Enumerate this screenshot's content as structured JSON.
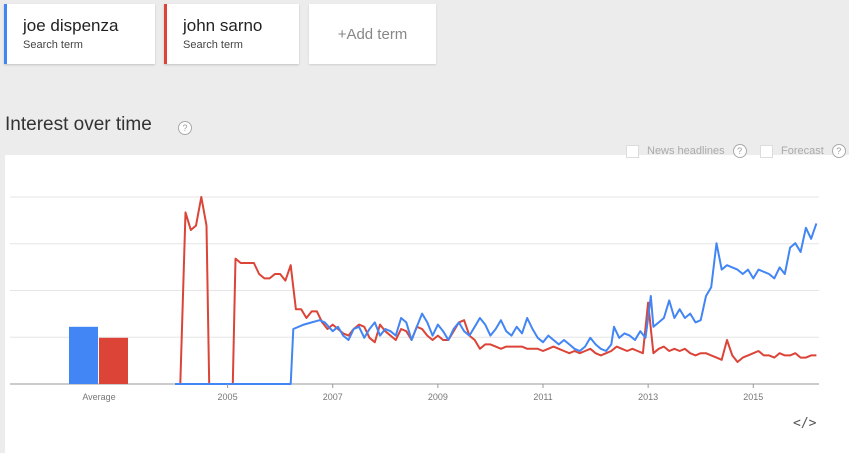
{
  "terms": [
    {
      "name": "joe dispenza",
      "subtitle": "Search term",
      "color": "#4285f4"
    },
    {
      "name": "john sarno",
      "subtitle": "Search term",
      "color": "#db4437"
    }
  ],
  "add_term": {
    "label": "+Add term"
  },
  "section": {
    "title": "Interest over time",
    "help": "?"
  },
  "options": {
    "news_headlines": {
      "label": "News headlines",
      "help": "?"
    },
    "forecast": {
      "label": "Forecast",
      "help": "?"
    }
  },
  "embed": {
    "label": "</>",
    "icon": "embed-code-icon"
  },
  "chart_data": [
    {
      "type": "bar",
      "categories": [
        "Average"
      ],
      "series": [
        {
          "name": "joe dispenza",
          "color": "#4285f4",
          "values": [
            26
          ]
        },
        {
          "name": "john sarno",
          "color": "#db4437",
          "values": [
            21
          ]
        }
      ],
      "ylim": [
        0,
        85
      ]
    },
    {
      "type": "line",
      "x_ticks": [
        "2005",
        "2007",
        "2009",
        "2011",
        "2013",
        "2015"
      ],
      "xlim": [
        2004.0,
        2016.25
      ],
      "ylim": [
        0,
        85
      ],
      "grid": true,
      "series": [
        {
          "name": "joe dispenza",
          "color": "#4285f4",
          "points": [
            [
              2004.0,
              0
            ],
            [
              2006.2,
              0
            ],
            [
              2006.25,
              25
            ],
            [
              2006.45,
              27
            ],
            [
              2006.6,
              28
            ],
            [
              2006.75,
              29
            ],
            [
              2006.85,
              28
            ],
            [
              2007.0,
              24
            ],
            [
              2007.1,
              26
            ],
            [
              2007.2,
              22
            ],
            [
              2007.3,
              20
            ],
            [
              2007.4,
              25
            ],
            [
              2007.5,
              26
            ],
            [
              2007.6,
              21
            ],
            [
              2007.7,
              25
            ],
            [
              2007.8,
              28
            ],
            [
              2007.9,
              22
            ],
            [
              2008.0,
              25
            ],
            [
              2008.1,
              24
            ],
            [
              2008.2,
              22
            ],
            [
              2008.3,
              30
            ],
            [
              2008.4,
              28
            ],
            [
              2008.5,
              20
            ],
            [
              2008.6,
              26
            ],
            [
              2008.7,
              32
            ],
            [
              2008.8,
              28
            ],
            [
              2008.9,
              22
            ],
            [
              2009.0,
              27
            ],
            [
              2009.1,
              24
            ],
            [
              2009.2,
              20
            ],
            [
              2009.3,
              25
            ],
            [
              2009.4,
              28
            ],
            [
              2009.5,
              24
            ],
            [
              2009.6,
              22
            ],
            [
              2009.7,
              26
            ],
            [
              2009.8,
              30
            ],
            [
              2009.9,
              27
            ],
            [
              2010.0,
              22
            ],
            [
              2010.1,
              25
            ],
            [
              2010.2,
              29
            ],
            [
              2010.3,
              24
            ],
            [
              2010.4,
              22
            ],
            [
              2010.5,
              26
            ],
            [
              2010.6,
              23
            ],
            [
              2010.7,
              30
            ],
            [
              2010.8,
              25
            ],
            [
              2010.9,
              21
            ],
            [
              2011.0,
              19
            ],
            [
              2011.1,
              22
            ],
            [
              2011.2,
              20
            ],
            [
              2011.3,
              18
            ],
            [
              2011.4,
              20
            ],
            [
              2011.5,
              18
            ],
            [
              2011.6,
              16
            ],
            [
              2011.7,
              15
            ],
            [
              2011.8,
              17
            ],
            [
              2011.9,
              21
            ],
            [
              2012.0,
              18
            ],
            [
              2012.1,
              16
            ],
            [
              2012.2,
              15
            ],
            [
              2012.3,
              18
            ],
            [
              2012.35,
              26
            ],
            [
              2012.45,
              21
            ],
            [
              2012.55,
              23
            ],
            [
              2012.65,
              22
            ],
            [
              2012.75,
              20
            ],
            [
              2012.85,
              24
            ],
            [
              2012.95,
              21
            ],
            [
              2013.0,
              30
            ],
            [
              2013.05,
              40
            ],
            [
              2013.1,
              26
            ],
            [
              2013.2,
              28
            ],
            [
              2013.3,
              30
            ],
            [
              2013.4,
              38
            ],
            [
              2013.5,
              30
            ],
            [
              2013.6,
              34
            ],
            [
              2013.7,
              30
            ],
            [
              2013.8,
              32
            ],
            [
              2013.9,
              28
            ],
            [
              2014.0,
              29
            ],
            [
              2014.1,
              40
            ],
            [
              2014.2,
              44
            ],
            [
              2014.3,
              64
            ],
            [
              2014.4,
              52
            ],
            [
              2014.5,
              54
            ],
            [
              2014.6,
              53
            ],
            [
              2014.7,
              52
            ],
            [
              2014.8,
              50
            ],
            [
              2014.9,
              52
            ],
            [
              2015.0,
              48
            ],
            [
              2015.1,
              52
            ],
            [
              2015.2,
              51
            ],
            [
              2015.3,
              50
            ],
            [
              2015.4,
              48
            ],
            [
              2015.5,
              53
            ],
            [
              2015.6,
              50
            ],
            [
              2015.7,
              62
            ],
            [
              2015.8,
              64
            ],
            [
              2015.9,
              60
            ],
            [
              2016.0,
              71
            ],
            [
              2016.1,
              66
            ],
            [
              2016.2,
              73
            ]
          ]
        },
        {
          "name": "john sarno",
          "color": "#db4437",
          "points": [
            [
              2004.0,
              0
            ],
            [
              2004.1,
              0
            ],
            [
              2004.2,
              78
            ],
            [
              2004.3,
              70
            ],
            [
              2004.4,
              72
            ],
            [
              2004.5,
              85
            ],
            [
              2004.6,
              72
            ],
            [
              2004.65,
              0
            ],
            [
              2005.1,
              0
            ],
            [
              2005.15,
              57
            ],
            [
              2005.25,
              55
            ],
            [
              2005.35,
              55
            ],
            [
              2005.5,
              55
            ],
            [
              2005.6,
              50
            ],
            [
              2005.7,
              48
            ],
            [
              2005.8,
              48
            ],
            [
              2005.9,
              50
            ],
            [
              2006.0,
              50
            ],
            [
              2006.1,
              47
            ],
            [
              2006.2,
              54
            ],
            [
              2006.3,
              34
            ],
            [
              2006.4,
              34
            ],
            [
              2006.5,
              30
            ],
            [
              2006.6,
              33
            ],
            [
              2006.7,
              33
            ],
            [
              2006.8,
              28
            ],
            [
              2006.9,
              25
            ],
            [
              2007.0,
              27
            ],
            [
              2007.1,
              25
            ],
            [
              2007.2,
              23
            ],
            [
              2007.3,
              22
            ],
            [
              2007.4,
              25
            ],
            [
              2007.5,
              27
            ],
            [
              2007.6,
              26
            ],
            [
              2007.7,
              21
            ],
            [
              2007.8,
              19
            ],
            [
              2007.9,
              27
            ],
            [
              2008.0,
              24
            ],
            [
              2008.1,
              22
            ],
            [
              2008.2,
              20
            ],
            [
              2008.3,
              25
            ],
            [
              2008.4,
              24
            ],
            [
              2008.5,
              20
            ],
            [
              2008.6,
              26
            ],
            [
              2008.7,
              25
            ],
            [
              2008.8,
              22
            ],
            [
              2008.9,
              20
            ],
            [
              2009.0,
              22
            ],
            [
              2009.1,
              20
            ],
            [
              2009.2,
              20
            ],
            [
              2009.3,
              24
            ],
            [
              2009.4,
              28
            ],
            [
              2009.5,
              29
            ],
            [
              2009.6,
              22
            ],
            [
              2009.7,
              20
            ],
            [
              2009.8,
              16
            ],
            [
              2009.9,
              18
            ],
            [
              2010.0,
              18
            ],
            [
              2010.1,
              17
            ],
            [
              2010.2,
              16
            ],
            [
              2010.3,
              17
            ],
            [
              2010.4,
              17
            ],
            [
              2010.5,
              17
            ],
            [
              2010.6,
              17
            ],
            [
              2010.7,
              16
            ],
            [
              2010.8,
              16
            ],
            [
              2010.9,
              16
            ],
            [
              2011.0,
              15
            ],
            [
              2011.1,
              16
            ],
            [
              2011.2,
              17
            ],
            [
              2011.3,
              16
            ],
            [
              2011.4,
              15
            ],
            [
              2011.5,
              14
            ],
            [
              2011.6,
              15
            ],
            [
              2011.7,
              14
            ],
            [
              2011.8,
              15
            ],
            [
              2011.9,
              16
            ],
            [
              2012.0,
              14
            ],
            [
              2012.1,
              13
            ],
            [
              2012.2,
              14
            ],
            [
              2012.3,
              15
            ],
            [
              2012.4,
              17
            ],
            [
              2012.5,
              16
            ],
            [
              2012.6,
              15
            ],
            [
              2012.7,
              16
            ],
            [
              2012.8,
              15
            ],
            [
              2012.9,
              14
            ],
            [
              2013.0,
              37
            ],
            [
              2013.1,
              14
            ],
            [
              2013.2,
              16
            ],
            [
              2013.3,
              17
            ],
            [
              2013.4,
              15
            ],
            [
              2013.5,
              16
            ],
            [
              2013.6,
              15
            ],
            [
              2013.7,
              16
            ],
            [
              2013.8,
              14
            ],
            [
              2013.9,
              13
            ],
            [
              2014.0,
              14
            ],
            [
              2014.1,
              14
            ],
            [
              2014.2,
              13
            ],
            [
              2014.3,
              12
            ],
            [
              2014.4,
              11
            ],
            [
              2014.5,
              20
            ],
            [
              2014.6,
              13
            ],
            [
              2014.7,
              10
            ],
            [
              2014.8,
              12
            ],
            [
              2014.9,
              13
            ],
            [
              2015.0,
              14
            ],
            [
              2015.1,
              15
            ],
            [
              2015.2,
              13
            ],
            [
              2015.3,
              13
            ],
            [
              2015.4,
              12
            ],
            [
              2015.5,
              14
            ],
            [
              2015.6,
              13
            ],
            [
              2015.7,
              13
            ],
            [
              2015.8,
              14
            ],
            [
              2015.9,
              12
            ],
            [
              2016.0,
              12
            ],
            [
              2016.1,
              13
            ],
            [
              2016.2,
              13
            ]
          ]
        }
      ]
    }
  ]
}
